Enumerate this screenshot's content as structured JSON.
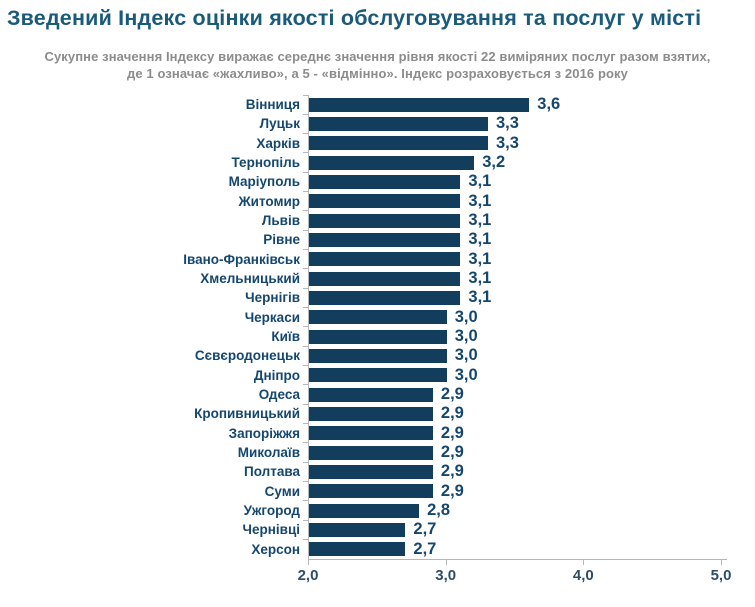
{
  "header": {
    "title": "Зведений Індекс оцінки якості обслуговування та послуг у місті",
    "subtitle_line1": "Сукупне значення Індексу виражає середнє значення рівня якості 22 виміряних послуг разом взятих,",
    "subtitle_line2": "де 1 означає «жахливо», а 5 - «відмінно». Індекс розраховується з 2016 року"
  },
  "chart_data": {
    "type": "bar",
    "orientation": "horizontal",
    "title": "Зведений Індекс оцінки якості обслуговування та послуг у місті",
    "categories": [
      "Вінниця",
      "Луцьк",
      "Харків",
      "Тернопіль",
      "Маріуполь",
      "Житомир",
      "Львів",
      "Рівне",
      "Івано-Франківськ",
      "Хмельницький",
      "Чернігів",
      "Черкаси",
      "Київ",
      "Сєвєродонецьк",
      "Дніпро",
      "Одеса",
      "Кропивницький",
      "Запоріжжя",
      "Миколаїв",
      "Полтава",
      "Суми",
      "Ужгород",
      "Чернівці",
      "Херсон"
    ],
    "values": [
      3.6,
      3.3,
      3.3,
      3.2,
      3.1,
      3.1,
      3.1,
      3.1,
      3.1,
      3.1,
      3.1,
      3.0,
      3.0,
      3.0,
      3.0,
      2.9,
      2.9,
      2.9,
      2.9,
      2.9,
      2.9,
      2.8,
      2.7,
      2.7
    ],
    "value_labels": [
      "3,6",
      "3,3",
      "3,3",
      "3,2",
      "3,1",
      "3,1",
      "3,1",
      "3,1",
      "3,1",
      "3,1",
      "3,1",
      "3,0",
      "3,0",
      "3,0",
      "3,0",
      "2,9",
      "2,9",
      "2,9",
      "2,9",
      "2,9",
      "2,9",
      "2,8",
      "2,7",
      "2,7"
    ],
    "xlim": [
      2.0,
      5.0
    ],
    "x_ticks": [
      {
        "value": 2.0,
        "label": "2,0"
      },
      {
        "value": 3.0,
        "label": "3,0"
      },
      {
        "value": 4.0,
        "label": "4,0"
      },
      {
        "value": 5.0,
        "label": "5,0"
      }
    ],
    "grid": false,
    "legend": false
  },
  "colors": {
    "bar": "#123d5c",
    "label": "#15476e",
    "title": "#1a5a7a",
    "subtitle": "#8c8c8c",
    "axis": "#b3b8bc",
    "tick_label": "#2e4d68",
    "background": "#ffffff"
  }
}
